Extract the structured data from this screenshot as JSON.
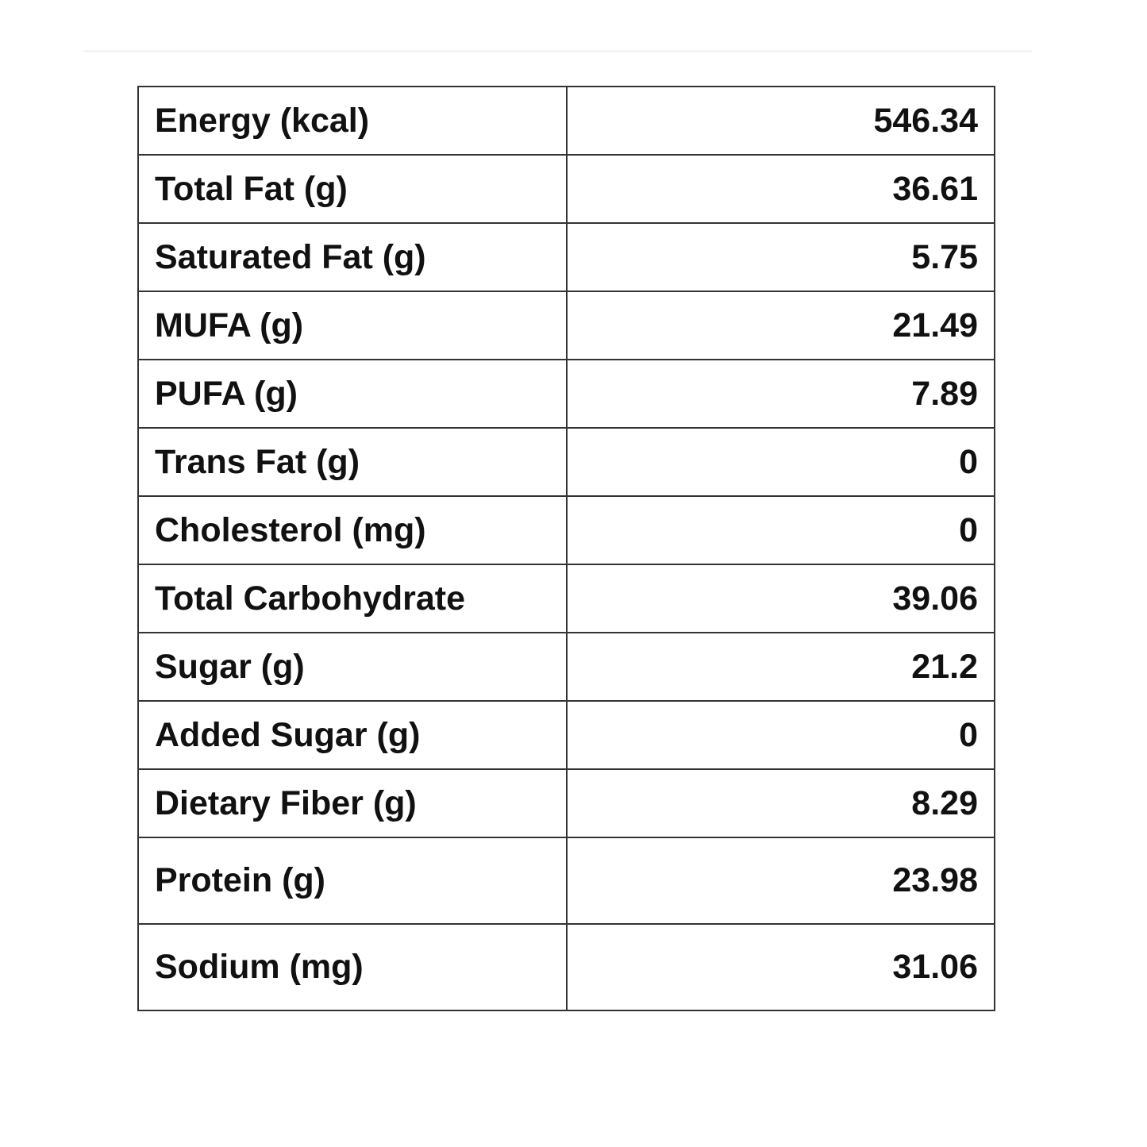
{
  "table": {
    "rows": [
      [
        "Energy (kcal)",
        546.34
      ],
      [
        "Total Fat (g)",
        36.61
      ],
      [
        "Saturated Fat (g)",
        5.75
      ],
      [
        "MUFA (g)",
        21.49
      ],
      [
        "PUFA (g)",
        7.89
      ],
      [
        "Trans Fat (g)",
        0
      ],
      [
        "Cholesterol (mg)",
        0
      ],
      [
        "Total Carbohydrate",
        39.06
      ],
      [
        "Sugar (g)",
        21.2
      ],
      [
        "Added Sugar (g)",
        0
      ],
      [
        "Dietary Fiber (g)",
        8.29
      ],
      [
        "Protein (g)",
        23.98
      ],
      [
        "Sodium (mg)",
        31.06
      ]
    ]
  }
}
